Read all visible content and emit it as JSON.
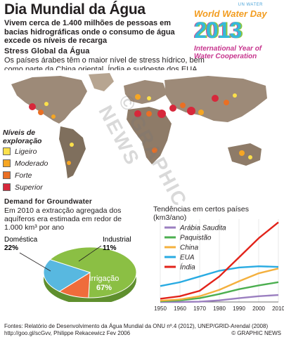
{
  "header": {
    "title": "Dia Mundial da Água",
    "intro": "Vivem cerca de 1.400 milhões de pessoas em bacias hidrográficas onde o consumo de água excede os níveis de recarga"
  },
  "logo": {
    "org": "UN WATER",
    "line1": "World Water Day",
    "year": "2013",
    "line2": "International Year of Water Cooperation"
  },
  "stress_section": {
    "heading": "Stress Global da Água",
    "body": "Os países árabes têm o maior nível de stress hídrico, bem como parte da China oriental, Índia e sudoeste dos EUA"
  },
  "legend": {
    "title": "Níveis de exploração",
    "items": [
      {
        "label": "Ligeiro",
        "color": "#fbe04b"
      },
      {
        "label": "Moderado",
        "color": "#f6a623"
      },
      {
        "label": "Forte",
        "color": "#ea6f24"
      },
      {
        "label": "Superior",
        "color": "#d7283b"
      }
    ]
  },
  "groundwater": {
    "heading": "Demand for Groundwater",
    "body": "Em 2010 a extracção agregada dos aquíferos era estimada em redor de 1.000 km³ por ano"
  },
  "pie": {
    "slices": [
      {
        "name": "Irrigação",
        "pct_label": "67%",
        "value": 67,
        "color": "#8bbf44"
      },
      {
        "name": "Doméstica",
        "pct_label": "22%",
        "value": 22,
        "color": "#58b8e0"
      },
      {
        "name": "Industrial",
        "pct_label": "11%",
        "value": 11,
        "color": "#ef6c3b"
      }
    ]
  },
  "chart_data": {
    "type": "line",
    "title": "Tendências em certos países (km3/ano)",
    "x": [
      1950,
      1960,
      1970,
      1980,
      1990,
      2000,
      2010
    ],
    "xlim": [
      1950,
      2010
    ],
    "ylim": [
      0,
      260
    ],
    "series": [
      {
        "name": "Arábia Saudita",
        "color": "#9b7fc0",
        "values": [
          0,
          0,
          1,
          5,
          12,
          18,
          22
        ]
      },
      {
        "name": "Paquistão",
        "color": "#4caf50",
        "values": [
          2,
          5,
          12,
          25,
          40,
          52,
          62
        ]
      },
      {
        "name": "China",
        "color": "#f4b03e",
        "values": [
          4,
          8,
          18,
          38,
          65,
          90,
          105
        ]
      },
      {
        "name": "EUA",
        "color": "#29abe2",
        "values": [
          50,
          62,
          80,
          98,
          108,
          112,
          110
        ]
      },
      {
        "name": "Índia",
        "color": "#e2231a",
        "values": [
          10,
          18,
          35,
          80,
          140,
          200,
          250
        ]
      }
    ]
  },
  "footer": {
    "sources": "Fontes: Relatório de Desenvolvimento da Água Mundial da ONU nº.4 (2012), UNEP/GRID-Arendal (2008) http://goo.gl/scGvv, Philippe Rekacewicz Fev 2006",
    "credit": "© GRAPHIC NEWS",
    "watermark": "© GRAPHIC NEWS"
  }
}
